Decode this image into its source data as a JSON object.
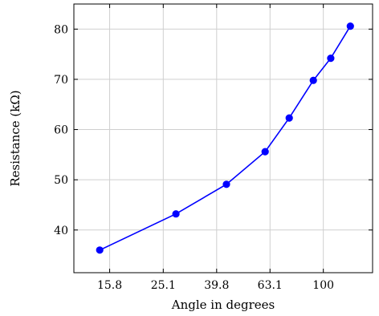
{
  "chart_data": {
    "type": "line",
    "title": "",
    "xlabel": "Angle in degrees",
    "ylabel": "Resistance (kΩ)",
    "x_scale": "log",
    "x_ticks": [
      15.8,
      25.1,
      39.8,
      63.1,
      100
    ],
    "x_tick_labels": [
      "15.8",
      "25.1",
      "39.8",
      "63.1",
      "100"
    ],
    "y_ticks": [
      40,
      50,
      60,
      70,
      80
    ],
    "y_tick_labels": [
      "40",
      "50",
      "60",
      "70",
      "80"
    ],
    "xlim": [
      11.6,
      153
    ],
    "ylim": [
      31.5,
      85
    ],
    "grid": true,
    "legend": "none",
    "series": [
      {
        "color": "#0000ff",
        "marker": "circle",
        "x": [
          14.5,
          28,
          43.3,
          60.5,
          74.5,
          91.7,
          106.6,
          126.3
        ],
        "y": [
          36.0,
          43.2,
          49.1,
          55.6,
          62.3,
          69.8,
          74.2,
          80.6
        ]
      }
    ]
  }
}
